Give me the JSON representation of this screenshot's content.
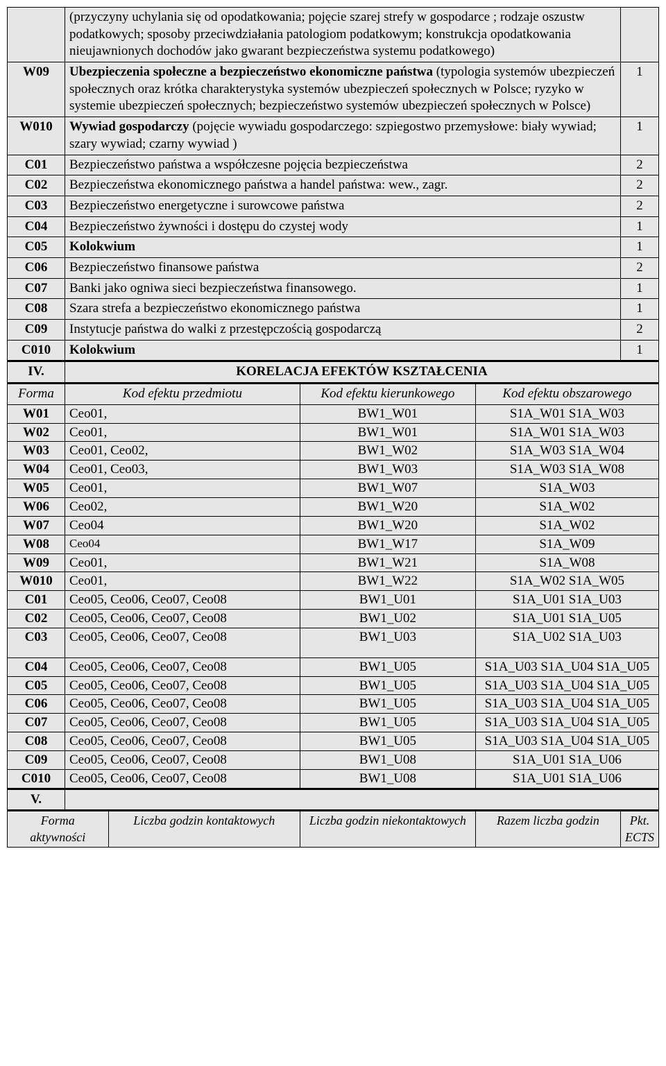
{
  "content_rows": [
    {
      "code": "",
      "desc": "(przyczyny uchylania się od opodatkowania; pojęcie szarej strefy w gospodarce ; rodzaje oszustw podatkowych; sposoby przeciwdziałania patologiom podatkowym; konstrukcja opodatkowania nieujawnionych dochodów jako gwarant bezpieczeństwa systemu podatkowego)",
      "num": "",
      "bold": false
    },
    {
      "code": "W09",
      "desc_bold": "Ubezpieczenia społeczne a bezpieczeństwo ekonomiczne państwa",
      "desc_rest": " (typologia systemów ubezpieczeń społecznych oraz krótka charakterystyka systemów ubezpieczeń społecznych w Polsce; ryzyko w systemie ubezpieczeń społecznych; bezpieczeństwo systemów ubezpieczeń społecznych w Polsce)",
      "num": "1"
    },
    {
      "code": "W010",
      "desc_bold": "Wywiad gospodarczy",
      "desc_rest": " (pojęcie wywiadu gospodarczego: szpiegostwo przemysłowe: biały wywiad; szary wywiad; czarny wywiad )",
      "num": "1"
    },
    {
      "code": "C01",
      "desc": "Bezpieczeństwo państwa a współczesne pojęcia bezpieczeństwa",
      "num": "2"
    },
    {
      "code": "C02",
      "desc": "Bezpieczeństwa ekonomicznego państwa a handel państwa: wew., zagr.",
      "num": "2"
    },
    {
      "code": "C03",
      "desc": "Bezpieczeństwo energetyczne i surowcowe państwa",
      "num": "2"
    },
    {
      "code": "C04",
      "desc": "Bezpieczeństwo żywności i dostępu do czystej wody",
      "num": "1"
    },
    {
      "code": "C05",
      "desc": "Kolokwium",
      "num": "1",
      "bold": true
    },
    {
      "code": "C06",
      "desc": "Bezpieczeństwo finansowe państwa",
      "num": "2"
    },
    {
      "code": "C07",
      "desc": "Banki jako ogniwa sieci bezpieczeństwa finansowego.",
      "num": "1"
    },
    {
      "code": "C08",
      "desc": "Szara strefa a bezpieczeństwo ekonomicznego państwa",
      "num": "1"
    },
    {
      "code": "C09",
      "desc": "Instytucje państwa do walki z przestępczością gospodarczą",
      "num": "2"
    },
    {
      "code": "C010",
      "desc": "Kolokwium",
      "num": "1",
      "bold": true
    }
  ],
  "section4_label": "IV.",
  "section4_title": "KORELACJA EFEKTÓW KSZTAŁCENIA",
  "korelacja_headers": {
    "forma": "Forma",
    "kod1": "Kod efektu przedmiotu",
    "kod2": "Kod efektu kierunkowego",
    "kod3": "Kod efektu obszarowego"
  },
  "korelacja_rows": [
    {
      "f": "W01",
      "k1": "Ceo01,",
      "k2": "BW1_W01",
      "k3": "S1A_W01 S1A_W03"
    },
    {
      "f": "W02",
      "k1": "Ceo01,",
      "k2": "BW1_W01",
      "k3": "S1A_W01 S1A_W03"
    },
    {
      "f": "W03",
      "k1": "Ceo01, Ceo02,",
      "k2": "BW1_W02",
      "k3": "S1A_W03 S1A_W04"
    },
    {
      "f": "W04",
      "k1": "Ceo01, Ceo03,",
      "k2": "BW1_W03",
      "k3": "S1A_W03 S1A_W08"
    },
    {
      "f": "W05",
      "k1": "Ceo01,",
      "k2": "BW1_W07",
      "k3": "S1A_W03"
    },
    {
      "f": "W06",
      "k1": "Ceo02,",
      "k2": "BW1_W20",
      "k3": "S1A_W02"
    },
    {
      "f": "W07",
      "k1": "Ceo04",
      "k2": "BW1_W20",
      "k3": "S1A_W02"
    },
    {
      "f": "W08",
      "k1": "Ceo04",
      "k2": "BW1_W17",
      "k3": "S1A_W09",
      "small": true
    },
    {
      "f": "W09",
      "k1": "Ceo01,",
      "k2": "BW1_W21",
      "k3": "S1A_W08"
    },
    {
      "f": "W010",
      "k1": "Ceo01,",
      "k2": "BW1_W22",
      "k3": "S1A_W02 S1A_W05"
    },
    {
      "f": "C01",
      "k1": "Ceo05, Ceo06, Ceo07, Ceo08",
      "k2": "BW1_U01",
      "k3": "S1A_U01 S1A_U03"
    },
    {
      "f": "C02",
      "k1": "Ceo05, Ceo06, Ceo07, Ceo08",
      "k2": "BW1_U02",
      "k3": "S1A_U01 S1A_U05"
    },
    {
      "f": "C03",
      "k1": "Ceo05, Ceo06, Ceo07, Ceo08",
      "k2": "BW1_U03",
      "k3": "S1A_U02 S1A_U03",
      "tall": true
    },
    {
      "f": "C04",
      "k1": "Ceo05, Ceo06, Ceo07, Ceo08",
      "k2": "BW1_U05",
      "k3": "S1A_U03 S1A_U04 S1A_U05"
    },
    {
      "f": "C05",
      "k1": "Ceo05, Ceo06, Ceo07, Ceo08",
      "k2": "BW1_U05",
      "k3": "S1A_U03 S1A_U04 S1A_U05"
    },
    {
      "f": "C06",
      "k1": "Ceo05, Ceo06, Ceo07, Ceo08",
      "k2": "BW1_U05",
      "k3": "S1A_U03 S1A_U04 S1A_U05"
    },
    {
      "f": "C07",
      "k1": "Ceo05, Ceo06, Ceo07, Ceo08",
      "k2": "BW1_U05",
      "k3": "S1A_U03 S1A_U04 S1A_U05"
    },
    {
      "f": "C08",
      "k1": "Ceo05, Ceo06, Ceo07, Ceo08",
      "k2": "BW1_U05",
      "k3": "S1A_U03 S1A_U04 S1A_U05"
    },
    {
      "f": "C09",
      "k1": "Ceo05, Ceo06, Ceo07, Ceo08",
      "k2": "BW1_U08",
      "k3": "S1A_U01 S1A_U06"
    },
    {
      "f": "C010",
      "k1": "Ceo05, Ceo06, Ceo07, Ceo08",
      "k2": "BW1_U08",
      "k3": "S1A_U01 S1A_U06"
    }
  ],
  "section5_label": "V.",
  "footer_headers": {
    "forma": "Forma aktywności",
    "kontakt": "Liczba godzin kontaktowych",
    "niekontakt": "Liczba godzin niekontaktowych",
    "razem": "Razem liczba godzin",
    "ects": "Pkt. ECTS"
  }
}
